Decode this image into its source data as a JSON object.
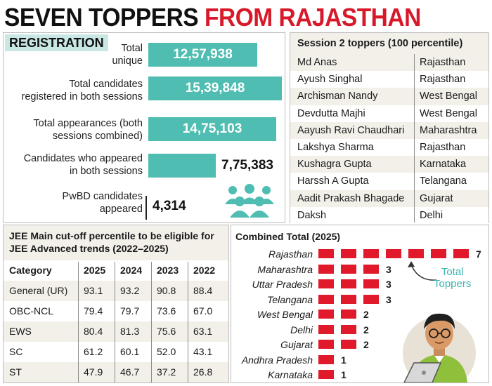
{
  "title": {
    "part1": "SEVEN TOPPERS",
    "part2": "FROM RAJASTHAN"
  },
  "registration": {
    "tag": "REGISTRATION",
    "rows": [
      {
        "label_line1": "Total",
        "label_line2": "unique",
        "value": "12,57,938",
        "number": 1257938
      },
      {
        "label_line1": "Total candidates",
        "label_line2": "registered in both sessions",
        "value": "15,39,848",
        "number": 1539848
      },
      {
        "label_line1": "Total appearances (both",
        "label_line2": "sessions combined)",
        "value": "14,75,103",
        "number": 1475103
      },
      {
        "label_line1": "Candidates who appeared",
        "label_line2": "in both sessions",
        "value": "7,75,383",
        "number": 775383
      },
      {
        "label_line1": "PwBD candidates",
        "label_line2": "appeared",
        "value": "4,314",
        "number": 4314
      }
    ]
  },
  "session2": {
    "heading": "Session 2 toppers (100 percentile)",
    "rows": [
      {
        "name": "Md Anas",
        "state": "Rajasthan"
      },
      {
        "name": "Ayush Singhal",
        "state": "Rajasthan"
      },
      {
        "name": "Archisman Nandy",
        "state": "West Bengal"
      },
      {
        "name": "Devdutta Majhi",
        "state": "West Bengal"
      },
      {
        "name": "Aayush Ravi Chaudhari",
        "state": "Maharashtra"
      },
      {
        "name": "Lakshya Sharma",
        "state": "Rajasthan"
      },
      {
        "name": "Kushagra Gupta",
        "state": "Karnataka"
      },
      {
        "name": "Harssh A Gupta",
        "state": "Telangana"
      },
      {
        "name": "Aadit Prakash Bhagade",
        "state": "Gujarat"
      },
      {
        "name": "Daksh",
        "state": "Delhi"
      }
    ]
  },
  "cutoff": {
    "heading_line1": "JEE Main cut-off percentile to be eligible for",
    "heading_line2": "JEE Advanced trends (2022–2025)",
    "columns": [
      "Category",
      "2025",
      "2024",
      "2023",
      "2022"
    ],
    "rows": [
      [
        "General (UR)",
        "93.1",
        "93.2",
        "90.8",
        "88.4"
      ],
      [
        "OBC-NCL",
        "79.4",
        "79.7",
        "73.6",
        "67.0"
      ],
      [
        "EWS",
        "80.4",
        "81.3",
        "75.6",
        "63.1"
      ],
      [
        "SC",
        "61.2",
        "60.1",
        "52.0",
        "43.1"
      ],
      [
        "ST",
        "47.9",
        "46.7",
        "37.2",
        "26.8"
      ]
    ]
  },
  "chart_data": {
    "type": "bar",
    "title": "Combined Total (2025)",
    "annotation": "Total Toppers",
    "categories": [
      "Rajasthan",
      "Maharashtra",
      "Uttar Pradesh",
      "Telangana",
      "West Bengal",
      "Delhi",
      "Gujarat",
      "Andhra Pradesh",
      "Karnataka"
    ],
    "values": [
      7,
      3,
      3,
      3,
      2,
      2,
      2,
      1,
      1
    ]
  },
  "colors": {
    "accent_red": "#d7192a",
    "bar_teal": "#4fbdb1",
    "tag_bg": "#c9e8e4",
    "panel_bg": "#f2f0e9"
  },
  "icons": {
    "people": "people-group-icon",
    "person": "student-laptop-illustration"
  }
}
